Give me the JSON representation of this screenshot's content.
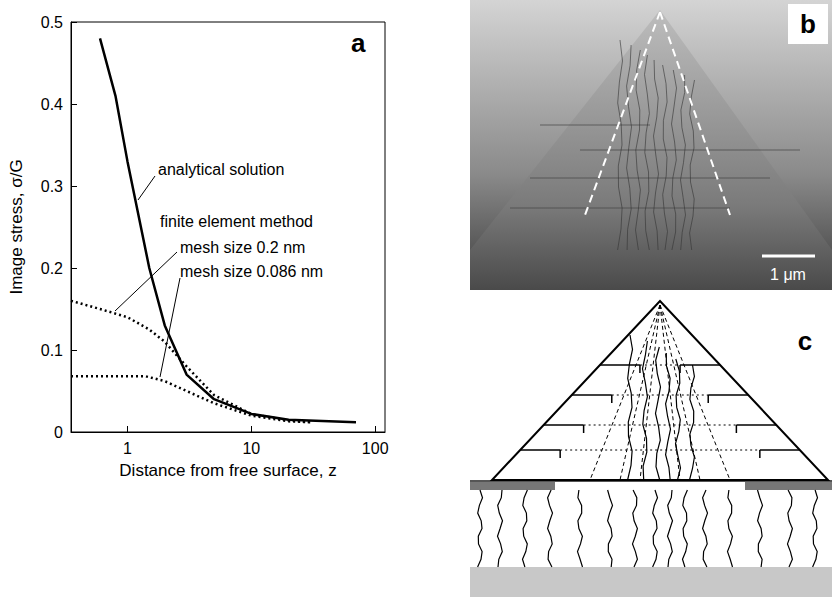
{
  "chart_data": {
    "type": "line",
    "panel_label": "a",
    "x_label": "Distance from free surface, z",
    "y_label": "Image stress, σ/G",
    "log": "x",
    "xlim": [
      0.35,
      120
    ],
    "xticks": [
      1,
      10,
      100
    ],
    "ylim": [
      0,
      0.5
    ],
    "yticks": [
      0,
      0.1,
      0.2,
      0.3,
      0.4,
      0.5
    ],
    "grid": false,
    "annotations": [
      "finite element method"
    ],
    "series": [
      {
        "name": "analytical solution",
        "color": "#000000",
        "line_style": "solid",
        "x": [
          0.6,
          0.8,
          1,
          1.5,
          2,
          3,
          5,
          10,
          20,
          70
        ],
        "values": [
          0.48,
          0.41,
          0.33,
          0.2,
          0.13,
          0.07,
          0.04,
          0.022,
          0.015,
          0.012
        ]
      },
      {
        "name": "mesh size 0.2 nm",
        "color": "#000000",
        "line_style": "dotted",
        "x": [
          0.35,
          0.6,
          1,
          1.5,
          2,
          3,
          5,
          10,
          20,
          30
        ],
        "values": [
          0.16,
          0.15,
          0.14,
          0.125,
          0.11,
          0.08,
          0.045,
          0.022,
          0.014,
          0.012
        ]
      },
      {
        "name": "mesh size 0.086 nm",
        "color": "#000000",
        "line_style": "dotted",
        "x": [
          0.35,
          1.4,
          2,
          3,
          5,
          10,
          20,
          30
        ],
        "values": [
          0.068,
          0.068,
          0.062,
          0.05,
          0.035,
          0.02,
          0.013,
          0.012
        ]
      }
    ]
  },
  "photo": {
    "panel_label": "b",
    "scale_bar": "1 μm"
  },
  "diagram": {
    "panel_label": "c"
  }
}
